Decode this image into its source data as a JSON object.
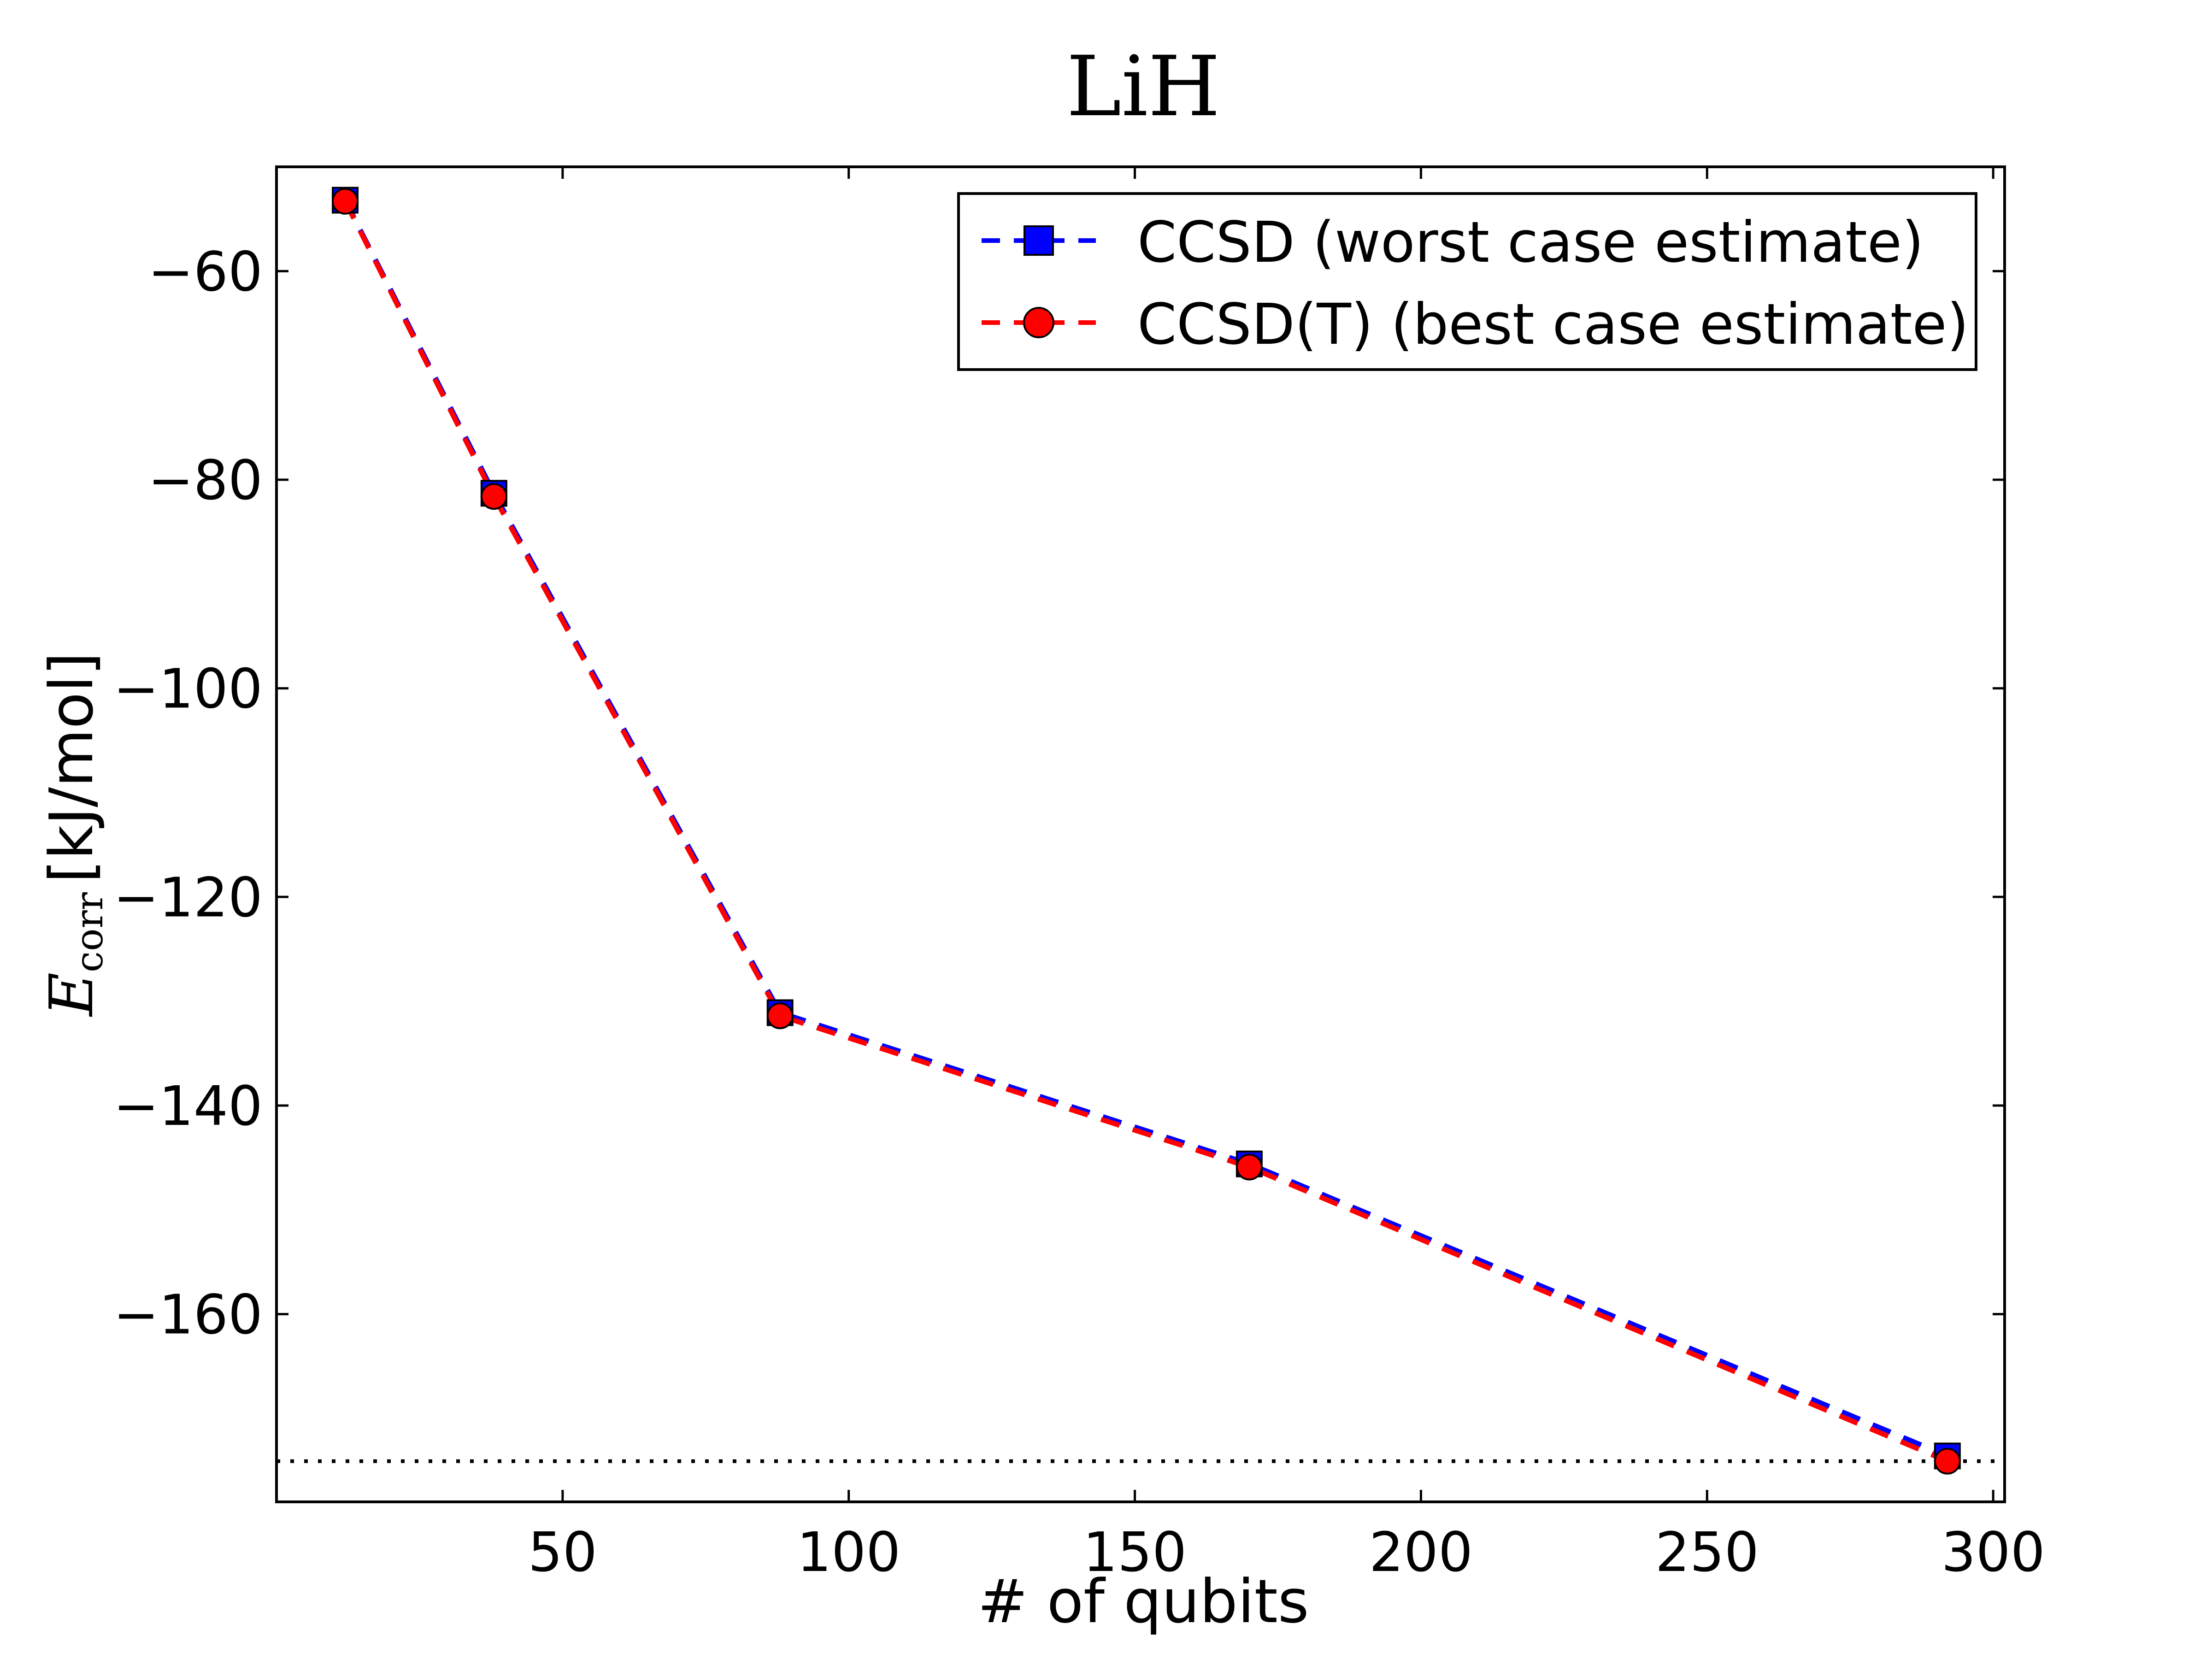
{
  "chart_data": {
    "type": "line",
    "title": "LiH",
    "xlabel": "# of qubits",
    "ylabel_symbol": "E",
    "ylabel_subscript": "corr",
    "ylabel_unit": "[kJ/mol]",
    "xlim": [
      0,
      302
    ],
    "ylim": [
      -178,
      -50
    ],
    "xticks": [
      50,
      100,
      150,
      200,
      250,
      300
    ],
    "yticks": [
      -60,
      -80,
      -100,
      -120,
      -140,
      -160
    ],
    "xtick_labels": [
      "50",
      "100",
      "150",
      "200",
      "250",
      "300"
    ],
    "ytick_labels": [
      "−60",
      "−80",
      "−100",
      "−120",
      "−140",
      "−160"
    ],
    "grid": false,
    "legend_position": "top-right",
    "reference_line_y": -174.1,
    "series": [
      {
        "name": "CCSD (worst case estimate)",
        "color": "#0000ff",
        "marker": "square",
        "x": [
          12,
          38,
          88,
          170,
          292
        ],
        "y": [
          -53.2,
          -81.3,
          -131.1,
          -145.6,
          -173.6
        ]
      },
      {
        "name": "CCSD(T) (best case estimate)",
        "color": "#ff0000",
        "marker": "circle",
        "x": [
          12,
          38,
          88,
          170,
          292
        ],
        "y": [
          -53.3,
          -81.6,
          -131.4,
          -145.9,
          -174.1
        ]
      }
    ]
  }
}
